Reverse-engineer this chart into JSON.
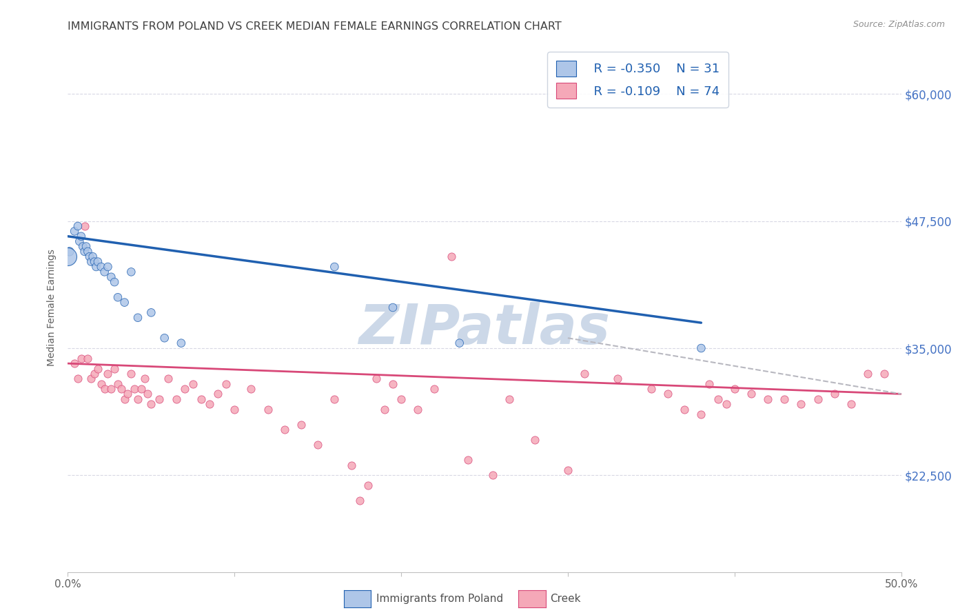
{
  "title": "IMMIGRANTS FROM POLAND VS CREEK MEDIAN FEMALE EARNINGS CORRELATION CHART",
  "source": "Source: ZipAtlas.com",
  "ylabel": "Median Female Earnings",
  "ytick_labels": [
    "$22,500",
    "$35,000",
    "$47,500",
    "$60,000"
  ],
  "ytick_values": [
    22500,
    35000,
    47500,
    60000
  ],
  "xmin": 0.0,
  "xmax": 0.5,
  "ymin": 13000,
  "ymax": 65000,
  "legend_blue_R": "R = -0.350",
  "legend_blue_N": "N = 31",
  "legend_pink_R": "R = -0.109",
  "legend_pink_N": "N = 74",
  "legend_label_blue": "Immigrants from Poland",
  "legend_label_pink": "Creek",
  "blue_color": "#aec6e8",
  "blue_line_color": "#2060b0",
  "pink_color": "#f5a8b8",
  "pink_line_color": "#d84878",
  "watermark": "ZIPatlas",
  "blue_scatter_x": [
    0.001,
    0.004,
    0.006,
    0.007,
    0.008,
    0.009,
    0.01,
    0.011,
    0.012,
    0.013,
    0.014,
    0.015,
    0.016,
    0.017,
    0.018,
    0.02,
    0.022,
    0.024,
    0.026,
    0.028,
    0.03,
    0.034,
    0.038,
    0.042,
    0.05,
    0.058,
    0.068,
    0.16,
    0.195,
    0.235,
    0.38
  ],
  "blue_scatter_y": [
    44500,
    46500,
    47000,
    45500,
    46000,
    45000,
    44500,
    45000,
    44500,
    44000,
    43500,
    44000,
    43500,
    43000,
    43500,
    43000,
    42500,
    43000,
    42000,
    41500,
    40000,
    39500,
    42500,
    38000,
    38500,
    36000,
    35500,
    43000,
    39000,
    35500,
    35000
  ],
  "blue_scatter_size_vals": [
    80,
    70,
    70,
    70,
    70,
    70,
    70,
    70,
    70,
    70,
    70,
    70,
    70,
    70,
    70,
    70,
    70,
    70,
    70,
    70,
    70,
    70,
    70,
    70,
    70,
    70,
    70,
    70,
    70,
    70,
    70
  ],
  "blue_large_x": [
    0.0
  ],
  "blue_large_y": [
    44000
  ],
  "blue_large_size": [
    350
  ],
  "pink_scatter_x": [
    0.004,
    0.006,
    0.008,
    0.01,
    0.012,
    0.014,
    0.016,
    0.018,
    0.02,
    0.022,
    0.024,
    0.026,
    0.028,
    0.03,
    0.032,
    0.034,
    0.036,
    0.038,
    0.04,
    0.042,
    0.044,
    0.046,
    0.048,
    0.05,
    0.055,
    0.06,
    0.065,
    0.07,
    0.075,
    0.08,
    0.085,
    0.09,
    0.095,
    0.1,
    0.11,
    0.12,
    0.13,
    0.14,
    0.15,
    0.16,
    0.17,
    0.175,
    0.18,
    0.185,
    0.19,
    0.195,
    0.2,
    0.21,
    0.22,
    0.23,
    0.24,
    0.255,
    0.265,
    0.28,
    0.3,
    0.31,
    0.33,
    0.35,
    0.36,
    0.37,
    0.38,
    0.385,
    0.39,
    0.395,
    0.4,
    0.41,
    0.42,
    0.43,
    0.44,
    0.45,
    0.46,
    0.47,
    0.48,
    0.49
  ],
  "pink_scatter_y": [
    33500,
    32000,
    34000,
    47000,
    34000,
    32000,
    32500,
    33000,
    31500,
    31000,
    32500,
    31000,
    33000,
    31500,
    31000,
    30000,
    30500,
    32500,
    31000,
    30000,
    31000,
    32000,
    30500,
    29500,
    30000,
    32000,
    30000,
    31000,
    31500,
    30000,
    29500,
    30500,
    31500,
    29000,
    31000,
    29000,
    27000,
    27500,
    25500,
    30000,
    23500,
    20000,
    21500,
    32000,
    29000,
    31500,
    30000,
    29000,
    31000,
    44000,
    24000,
    22500,
    30000,
    26000,
    23000,
    32500,
    32000,
    31000,
    30500,
    29000,
    28500,
    31500,
    30000,
    29500,
    31000,
    30500,
    30000,
    30000,
    29500,
    30000,
    30500,
    29500,
    32500,
    32500
  ],
  "pink_scatter_size": 65,
  "blue_trendline_x": [
    0.0,
    0.38
  ],
  "blue_trendline_y": [
    46000,
    37500
  ],
  "pink_trendline_x": [
    0.0,
    0.5
  ],
  "pink_trendline_y": [
    33500,
    30500
  ],
  "dashed_trendline_x": [
    0.3,
    0.5
  ],
  "dashed_trendline_y": [
    36000,
    30500
  ],
  "background_color": "#ffffff",
  "grid_color": "#d8d8e4",
  "title_color": "#404040",
  "source_color": "#909090",
  "right_axis_color": "#4472c4",
  "legend_fontsize": 13,
  "title_fontsize": 11.5,
  "xtick_positions": [
    0.0,
    0.1,
    0.2,
    0.3,
    0.4,
    0.5
  ],
  "xtick_labels": [
    "0.0%",
    "",
    "",
    "",
    "",
    "50.0%"
  ]
}
